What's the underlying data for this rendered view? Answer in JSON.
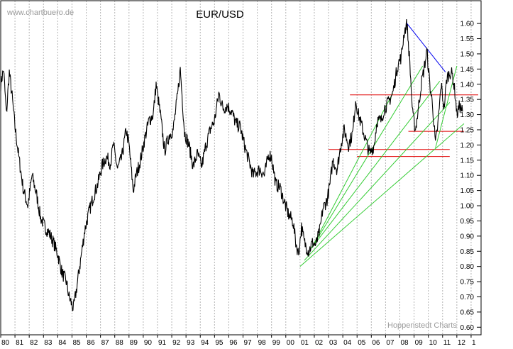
{
  "watermark": "www.chartbuero.de",
  "credit": "Hoppenstedt Charts",
  "chart_data": {
    "type": "line",
    "title": "EUR/USD",
    "xlabel": "",
    "ylabel": "",
    "x_tick_labels": [
      "80",
      "81",
      "82",
      "83",
      "84",
      "85",
      "86",
      "87",
      "88",
      "89",
      "90",
      "91",
      "92",
      "93",
      "94",
      "95",
      "96",
      "97",
      "98",
      "99",
      "00",
      "01",
      "02",
      "03",
      "04",
      "05",
      "06",
      "07",
      "08",
      "09",
      "10",
      "11",
      "12",
      "1"
    ],
    "xlim": [
      1980,
      2013.7
    ],
    "ylim": [
      0.575,
      1.675
    ],
    "y_ticks": [
      0.6,
      0.65,
      0.7,
      0.75,
      0.8,
      0.85,
      0.9,
      0.95,
      1.0,
      1.05,
      1.1,
      1.15,
      1.2,
      1.25,
      1.3,
      1.35,
      1.4,
      1.45,
      1.5,
      1.55,
      1.6
    ],
    "grid": "vertical",
    "series": [
      {
        "color": "#000000",
        "points": [
          [
            1980.0,
            1.4
          ],
          [
            1980.2,
            1.45
          ],
          [
            1980.4,
            1.3
          ],
          [
            1980.6,
            1.44
          ],
          [
            1980.8,
            1.36
          ],
          [
            1981.0,
            1.26
          ],
          [
            1981.3,
            1.15
          ],
          [
            1981.6,
            1.05
          ],
          [
            1981.9,
            1.0
          ],
          [
            1982.2,
            1.1
          ],
          [
            1982.5,
            1.04
          ],
          [
            1982.8,
            0.96
          ],
          [
            1983.1,
            0.93
          ],
          [
            1983.4,
            0.91
          ],
          [
            1983.7,
            0.88
          ],
          [
            1984.0,
            0.84
          ],
          [
            1984.3,
            0.78
          ],
          [
            1984.6,
            0.75
          ],
          [
            1984.8,
            0.7
          ],
          [
            1985.1,
            0.66
          ],
          [
            1985.3,
            0.72
          ],
          [
            1985.6,
            0.82
          ],
          [
            1985.9,
            0.92
          ],
          [
            1986.2,
            0.98
          ],
          [
            1986.5,
            1.03
          ],
          [
            1986.8,
            1.07
          ],
          [
            1987.1,
            1.13
          ],
          [
            1987.4,
            1.16
          ],
          [
            1987.7,
            1.14
          ],
          [
            1987.9,
            1.2
          ],
          [
            1988.2,
            1.12
          ],
          [
            1988.5,
            1.16
          ],
          [
            1988.8,
            1.25
          ],
          [
            1989.0,
            1.2
          ],
          [
            1989.3,
            1.05
          ],
          [
            1989.5,
            1.1
          ],
          [
            1989.8,
            1.15
          ],
          [
            1990.1,
            1.22
          ],
          [
            1990.4,
            1.28
          ],
          [
            1990.7,
            1.3
          ],
          [
            1990.9,
            1.4
          ],
          [
            1991.2,
            1.3
          ],
          [
            1991.5,
            1.18
          ],
          [
            1991.8,
            1.23
          ],
          [
            1992.1,
            1.25
          ],
          [
            1992.4,
            1.36
          ],
          [
            1992.6,
            1.45
          ],
          [
            1992.9,
            1.24
          ],
          [
            1993.2,
            1.2
          ],
          [
            1993.5,
            1.13
          ],
          [
            1993.8,
            1.17
          ],
          [
            1994.1,
            1.13
          ],
          [
            1994.4,
            1.2
          ],
          [
            1994.7,
            1.25
          ],
          [
            1995.0,
            1.28
          ],
          [
            1995.3,
            1.37
          ],
          [
            1995.6,
            1.32
          ],
          [
            1995.9,
            1.33
          ],
          [
            1996.2,
            1.31
          ],
          [
            1996.5,
            1.27
          ],
          [
            1996.8,
            1.26
          ],
          [
            1997.1,
            1.2
          ],
          [
            1997.4,
            1.15
          ],
          [
            1997.7,
            1.1
          ],
          [
            1997.9,
            1.11
          ],
          [
            1998.2,
            1.12
          ],
          [
            1998.5,
            1.1
          ],
          [
            1998.8,
            1.17
          ],
          [
            1999.0,
            1.16
          ],
          [
            1999.3,
            1.07
          ],
          [
            1999.6,
            1.06
          ],
          [
            1999.9,
            1.01
          ],
          [
            2000.2,
            0.97
          ],
          [
            2000.5,
            0.95
          ],
          [
            2000.7,
            0.88
          ],
          [
            2000.9,
            0.84
          ],
          [
            2001.1,
            0.93
          ],
          [
            2001.3,
            0.88
          ],
          [
            2001.6,
            0.85
          ],
          [
            2001.9,
            0.88
          ],
          [
            2002.1,
            0.87
          ],
          [
            2002.4,
            0.92
          ],
          [
            2002.6,
            0.99
          ],
          [
            2002.9,
            1.02
          ],
          [
            2003.1,
            1.07
          ],
          [
            2003.3,
            1.15
          ],
          [
            2003.6,
            1.12
          ],
          [
            2003.9,
            1.21
          ],
          [
            2004.1,
            1.25
          ],
          [
            2004.4,
            1.2
          ],
          [
            2004.7,
            1.24
          ],
          [
            2004.9,
            1.35
          ],
          [
            2005.1,
            1.3
          ],
          [
            2005.4,
            1.25
          ],
          [
            2005.7,
            1.2
          ],
          [
            2005.9,
            1.17
          ],
          [
            2006.2,
            1.2
          ],
          [
            2006.4,
            1.28
          ],
          [
            2006.7,
            1.28
          ],
          [
            2006.9,
            1.32
          ],
          [
            2007.2,
            1.34
          ],
          [
            2007.5,
            1.37
          ],
          [
            2007.8,
            1.45
          ],
          [
            2007.9,
            1.47
          ],
          [
            2008.1,
            1.49
          ],
          [
            2008.3,
            1.57
          ],
          [
            2008.5,
            1.6
          ],
          [
            2008.7,
            1.47
          ],
          [
            2008.9,
            1.3
          ],
          [
            2009.1,
            1.25
          ],
          [
            2009.3,
            1.32
          ],
          [
            2009.5,
            1.4
          ],
          [
            2009.7,
            1.45
          ],
          [
            2009.9,
            1.51
          ],
          [
            2010.1,
            1.4
          ],
          [
            2010.3,
            1.33
          ],
          [
            2010.5,
            1.2
          ],
          [
            2010.7,
            1.28
          ],
          [
            2010.9,
            1.4
          ],
          [
            2011.1,
            1.32
          ],
          [
            2011.3,
            1.42
          ],
          [
            2011.5,
            1.44
          ],
          [
            2011.7,
            1.43
          ],
          [
            2011.9,
            1.36
          ],
          [
            2012.0,
            1.3
          ],
          [
            2012.2,
            1.33
          ],
          [
            2012.4,
            1.31
          ]
        ]
      }
    ],
    "annotations": {
      "resistance_lines": [
        {
          "x": [
            2004.5,
            2013.5
          ],
          "y": 1.365,
          "color": "#e00000"
        },
        {
          "x": [
            2008.6,
            2012.5
          ],
          "y": 1.245,
          "color": "#e00000"
        },
        {
          "x": [
            2003.0,
            2011.5
          ],
          "y": 1.185,
          "color": "#e00000"
        },
        {
          "x": [
            2005.0,
            2011.5
          ],
          "y": 1.162,
          "color": "#e00000"
        }
      ],
      "trend_lines": [
        {
          "from": [
            2001.8,
            0.86
          ],
          "to": [
            2007.5,
            1.37
          ],
          "color": "#33cc33"
        },
        {
          "from": [
            2001.8,
            0.86
          ],
          "to": [
            2009.6,
            1.46
          ],
          "color": "#33cc33"
        },
        {
          "from": [
            2001.8,
            0.86
          ],
          "to": [
            2010.8,
            1.41
          ],
          "color": "#33cc33"
        },
        {
          "from": [
            2001.0,
            0.8
          ],
          "to": [
            2012.5,
            1.27
          ],
          "color": "#33cc33"
        },
        {
          "from": [
            2001.3,
            0.82
          ],
          "to": [
            2011.5,
            1.34
          ],
          "color": "#33cc33"
        },
        {
          "from": [
            2010.5,
            1.19
          ],
          "to": [
            2012.0,
            1.46
          ],
          "color": "#33cc33"
        }
      ],
      "down_trend": {
        "from": [
          2008.5,
          1.6
        ],
        "to": [
          2011.2,
          1.44
        ],
        "color": "#0000ee"
      }
    }
  }
}
